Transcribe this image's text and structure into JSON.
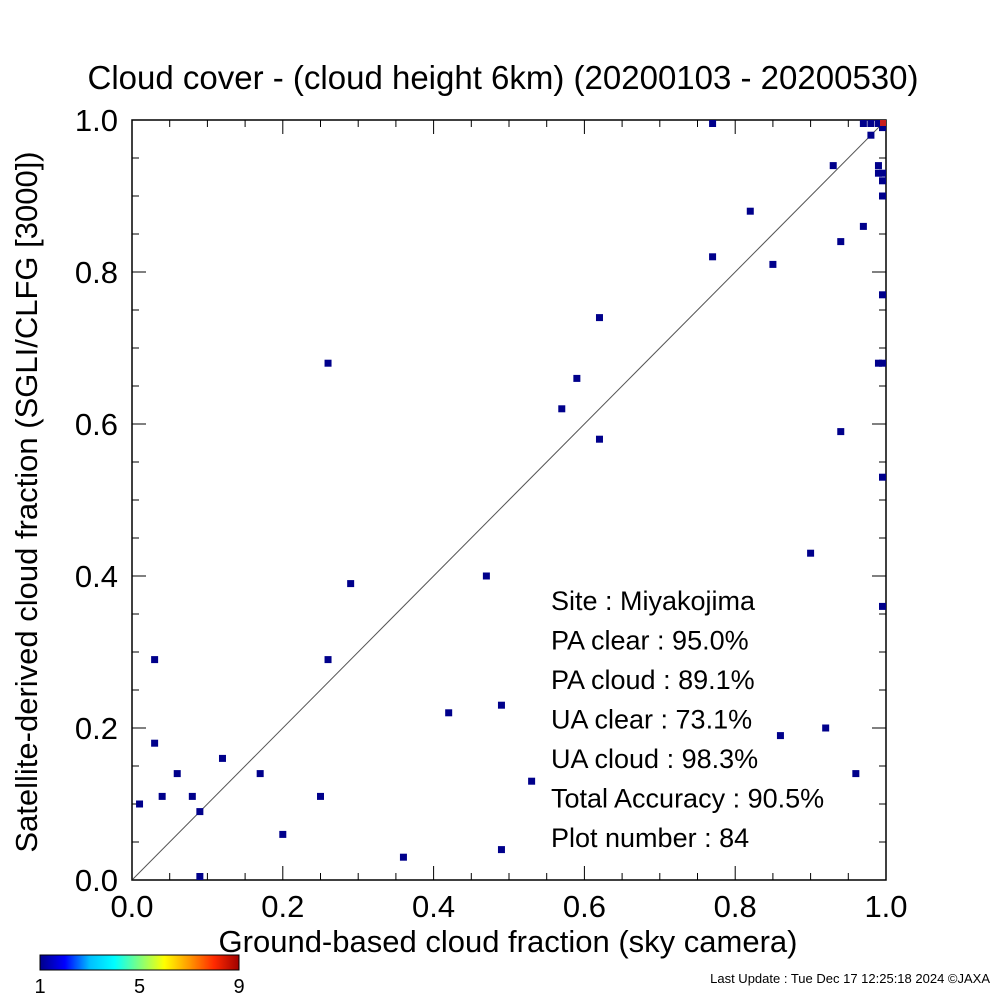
{
  "chart_data": {
    "type": "scatter",
    "title": "Cloud cover - (cloud height 6km)  (20200103 - 20200530)",
    "xlabel": "Ground-based cloud fraction (sky camera)",
    "ylabel": "Satellite-derived cloud fraction (SGLI/CLFG [3000])",
    "xlim": [
      0.0,
      1.0
    ],
    "ylim": [
      0.0,
      1.0
    ],
    "x_ticks": [
      "0.0",
      "0.2",
      "0.4",
      "0.6",
      "0.8",
      "1.0"
    ],
    "y_ticks": [
      "0.0",
      "0.2",
      "0.4",
      "0.6",
      "0.8",
      "1.0"
    ],
    "grid": false,
    "reference_line": "y = x",
    "point_color": "#00008b",
    "points": [
      {
        "x": 0.01,
        "y": 0.1
      },
      {
        "x": 0.03,
        "y": 0.29
      },
      {
        "x": 0.03,
        "y": 0.18
      },
      {
        "x": 0.04,
        "y": 0.11
      },
      {
        "x": 0.06,
        "y": 0.14
      },
      {
        "x": 0.08,
        "y": 0.11
      },
      {
        "x": 0.09,
        "y": 0.09
      },
      {
        "x": 0.09,
        "y": 0.0
      },
      {
        "x": 0.12,
        "y": 0.16
      },
      {
        "x": 0.17,
        "y": 0.14
      },
      {
        "x": 0.2,
        "y": 0.06
      },
      {
        "x": 0.25,
        "y": 0.11
      },
      {
        "x": 0.26,
        "y": 0.68
      },
      {
        "x": 0.26,
        "y": 0.29
      },
      {
        "x": 0.29,
        "y": 0.39
      },
      {
        "x": 0.36,
        "y": 0.03
      },
      {
        "x": 0.42,
        "y": 0.22
      },
      {
        "x": 0.47,
        "y": 0.4
      },
      {
        "x": 0.49,
        "y": 0.23
      },
      {
        "x": 0.49,
        "y": 0.04
      },
      {
        "x": 0.53,
        "y": 0.13
      },
      {
        "x": 0.57,
        "y": 0.62
      },
      {
        "x": 0.59,
        "y": 0.66
      },
      {
        "x": 0.62,
        "y": 0.74
      },
      {
        "x": 0.62,
        "y": 0.58
      },
      {
        "x": 0.77,
        "y": 1.0
      },
      {
        "x": 0.77,
        "y": 0.82
      },
      {
        "x": 0.82,
        "y": 0.88
      },
      {
        "x": 0.85,
        "y": 0.81
      },
      {
        "x": 0.86,
        "y": 0.19
      },
      {
        "x": 0.9,
        "y": 0.43
      },
      {
        "x": 0.92,
        "y": 0.2
      },
      {
        "x": 0.93,
        "y": 0.94
      },
      {
        "x": 0.94,
        "y": 0.84
      },
      {
        "x": 0.94,
        "y": 0.59
      },
      {
        "x": 0.96,
        "y": 0.14
      },
      {
        "x": 0.97,
        "y": 0.86
      },
      {
        "x": 0.97,
        "y": 1.0
      },
      {
        "x": 0.98,
        "y": 0.98
      },
      {
        "x": 0.98,
        "y": 1.0
      },
      {
        "x": 0.99,
        "y": 1.0
      },
      {
        "x": 0.99,
        "y": 0.94
      },
      {
        "x": 0.99,
        "y": 0.93
      },
      {
        "x": 0.99,
        "y": 0.68
      },
      {
        "x": 1.0,
        "y": 1.0
      },
      {
        "x": 1.0,
        "y": 0.99
      },
      {
        "x": 1.0,
        "y": 0.93
      },
      {
        "x": 1.0,
        "y": 0.92
      },
      {
        "x": 1.0,
        "y": 0.9
      },
      {
        "x": 1.0,
        "y": 0.77
      },
      {
        "x": 1.0,
        "y": 0.68
      },
      {
        "x": 1.0,
        "y": 0.53
      },
      {
        "x": 1.0,
        "y": 0.36
      }
    ],
    "overlap_point": {
      "x": 1.0,
      "y": 1.0,
      "color": "#c81e1e"
    },
    "stats": [
      {
        "label": "Site : Miyakojima"
      },
      {
        "label": "PA clear :  95.0%"
      },
      {
        "label": "PA cloud :  89.1%"
      },
      {
        "label": "UA clear :  73.1%"
      },
      {
        "label": "UA cloud :  98.3%"
      },
      {
        "label": "Total Accuracy :  90.5%"
      },
      {
        "label": "Plot number :        84"
      }
    ],
    "colorbar": {
      "min": 1,
      "max": 9,
      "tick_labels": [
        "1",
        "5",
        "9"
      ],
      "colors": [
        "#00008b",
        "#0000ff",
        "#00bfff",
        "#00ffff",
        "#7fff7f",
        "#ffff00",
        "#ff9900",
        "#ff2a00",
        "#a00000"
      ]
    }
  },
  "footer": "Last Update : Tue Dec 17 12:25:18 2024  ©JAXA"
}
